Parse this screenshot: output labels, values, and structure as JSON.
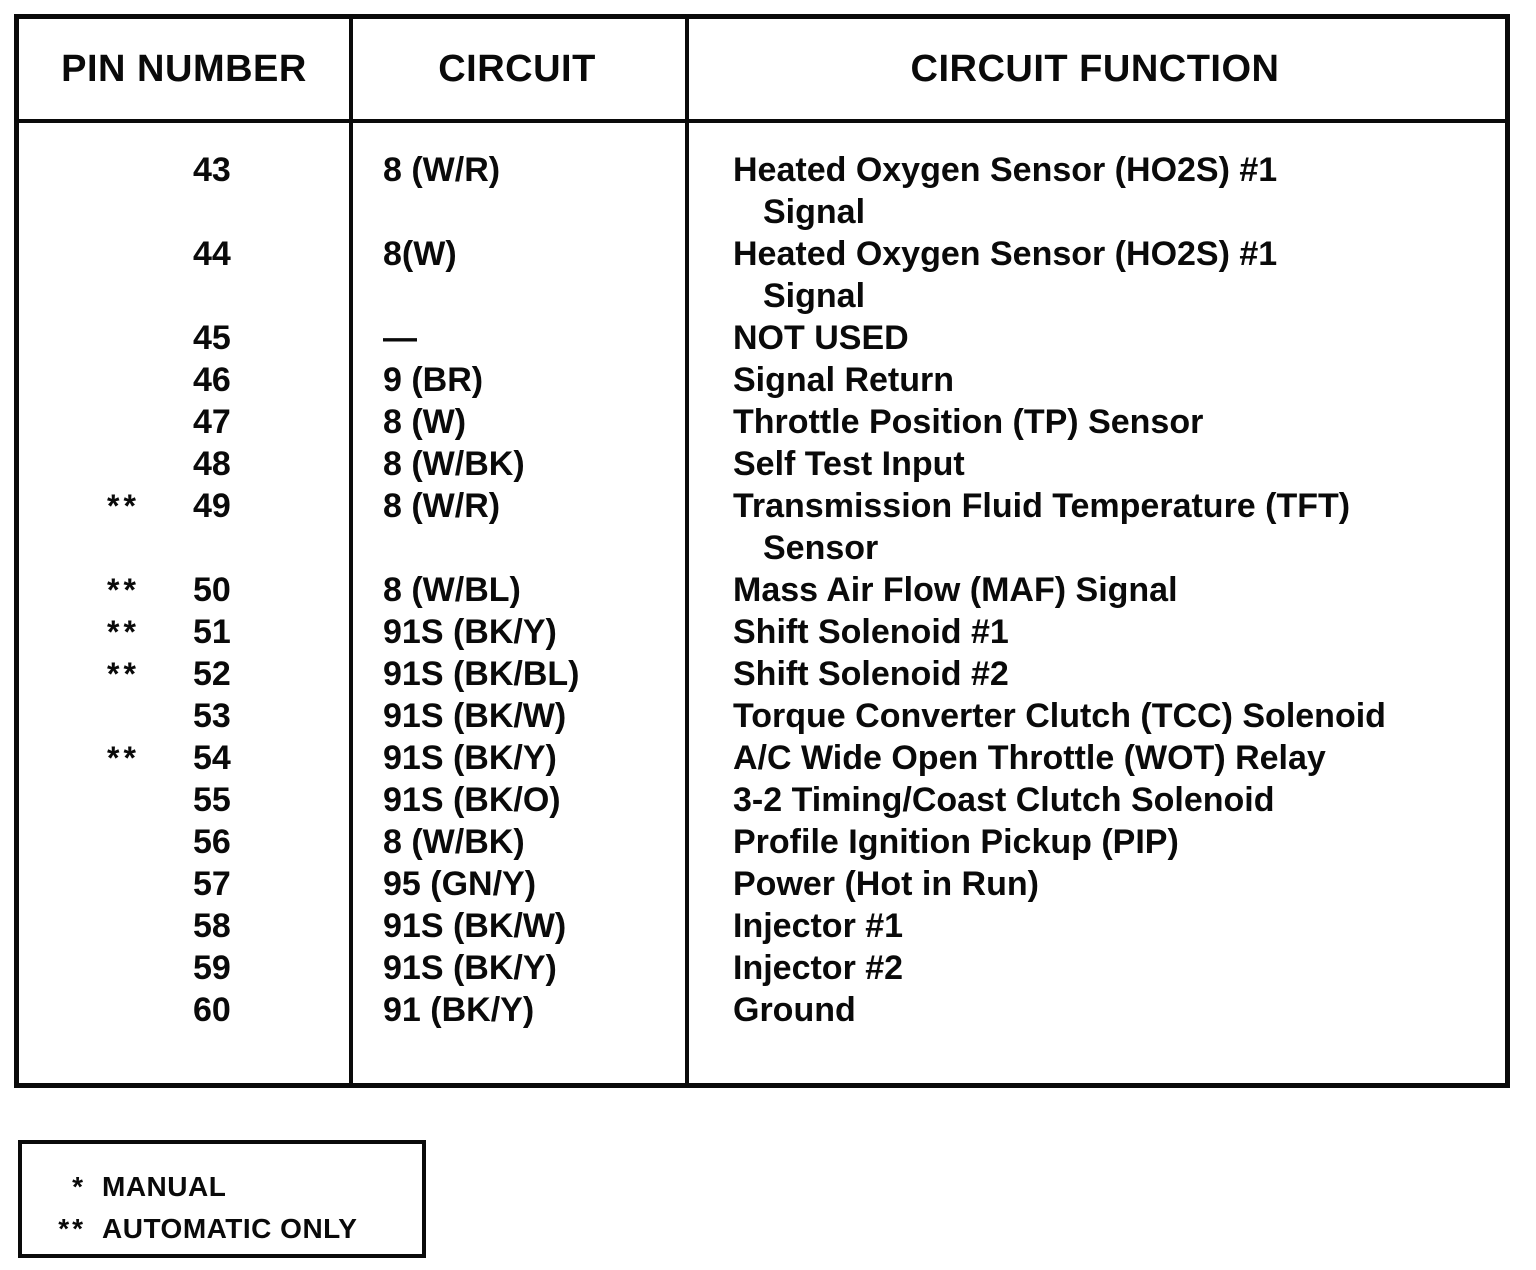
{
  "table": {
    "headers": [
      "PIN NUMBER",
      "CIRCUIT",
      "CIRCUIT FUNCTION"
    ],
    "rows": [
      {
        "marker": "",
        "pin": "43",
        "circuit": "8 (W/R)",
        "function_lines": [
          "Heated Oxygen Sensor (HO2S) #1",
          "Signal"
        ]
      },
      {
        "marker": "",
        "pin": "44",
        "circuit": "8(W)",
        "function_lines": [
          "Heated Oxygen Sensor (HO2S) #1",
          "Signal"
        ]
      },
      {
        "marker": "",
        "pin": "45",
        "circuit": "—",
        "function_lines": [
          "NOT USED"
        ]
      },
      {
        "marker": "",
        "pin": "46",
        "circuit": "9 (BR)",
        "function_lines": [
          "Signal Return"
        ]
      },
      {
        "marker": "",
        "pin": "47",
        "circuit": "8 (W)",
        "function_lines": [
          "Throttle Position (TP) Sensor"
        ]
      },
      {
        "marker": "",
        "pin": "48",
        "circuit": "8 (W/BK)",
        "function_lines": [
          "Self Test Input"
        ]
      },
      {
        "marker": "**",
        "pin": "49",
        "circuit": "8 (W/R)",
        "function_lines": [
          "Transmission Fluid Temperature (TFT)",
          "Sensor"
        ]
      },
      {
        "marker": "**",
        "pin": "50",
        "circuit": "8 (W/BL)",
        "function_lines": [
          "Mass Air Flow (MAF) Signal"
        ]
      },
      {
        "marker": "**",
        "pin": "51",
        "circuit": "91S (BK/Y)",
        "function_lines": [
          "Shift Solenoid #1"
        ]
      },
      {
        "marker": "**",
        "pin": "52",
        "circuit": "91S (BK/BL)",
        "function_lines": [
          "Shift Solenoid #2"
        ]
      },
      {
        "marker": "",
        "pin": "53",
        "circuit": "91S (BK/W)",
        "function_lines": [
          "Torque Converter Clutch (TCC) Solenoid"
        ]
      },
      {
        "marker": "**",
        "pin": "54",
        "circuit": "91S (BK/Y)",
        "function_lines": [
          "A/C Wide Open Throttle (WOT) Relay"
        ]
      },
      {
        "marker": "",
        "pin": "55",
        "circuit": "91S (BK/O)",
        "function_lines": [
          "3-2 Timing/Coast Clutch Solenoid"
        ]
      },
      {
        "marker": "",
        "pin": "56",
        "circuit": "8 (W/BK)",
        "function_lines": [
          "Profile Ignition Pickup (PIP)"
        ]
      },
      {
        "marker": "",
        "pin": "57",
        "circuit": "95 (GN/Y)",
        "function_lines": [
          "Power (Hot in Run)"
        ]
      },
      {
        "marker": "",
        "pin": "58",
        "circuit": "91S (BK/W)",
        "function_lines": [
          "Injector #1"
        ]
      },
      {
        "marker": "",
        "pin": "59",
        "circuit": "91S (BK/Y)",
        "function_lines": [
          "Injector #2"
        ]
      },
      {
        "marker": "",
        "pin": "60",
        "circuit": "91 (BK/Y)",
        "function_lines": [
          "Ground"
        ]
      }
    ]
  },
  "legend": {
    "items": [
      {
        "symbol": "*",
        "label": "MANUAL"
      },
      {
        "symbol": "**",
        "label": "AUTOMATIC ONLY"
      }
    ]
  }
}
